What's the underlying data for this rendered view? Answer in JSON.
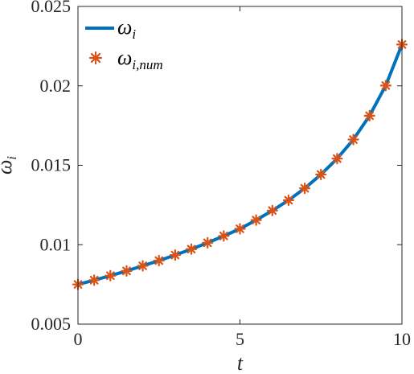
{
  "chart_data": {
    "type": "line",
    "xlabel": "t",
    "ylabel_main": "ω",
    "ylabel_sub": "i",
    "xlim": [
      0,
      10
    ],
    "ylim": [
      0.005,
      0.025
    ],
    "xticks": [
      0,
      5,
      10
    ],
    "xtick_labels": [
      "0",
      "5",
      "10"
    ],
    "yticks": [
      0.005,
      0.01,
      0.015,
      0.02,
      0.025
    ],
    "ytick_labels": [
      "0.005",
      "0.01",
      "0.015",
      "0.02",
      "0.025"
    ],
    "grid": false,
    "legend_position": "top-left",
    "series": [
      {
        "name_main": "ω",
        "name_sub": "i",
        "style": "line",
        "color": "#0072BD",
        "x": [
          0,
          0.5,
          1,
          1.5,
          2,
          2.5,
          3,
          3.5,
          4,
          4.5,
          5,
          5.5,
          6,
          6.5,
          7,
          7.5,
          8,
          8.5,
          9,
          9.5,
          10
        ],
        "y": [
          0.0075,
          0.00777,
          0.00805,
          0.00835,
          0.00867,
          0.009,
          0.00935,
          0.00972,
          0.01012,
          0.01055,
          0.011,
          0.01155,
          0.01215,
          0.0128,
          0.01355,
          0.01442,
          0.01542,
          0.01662,
          0.01812,
          0.02002,
          0.0226
        ]
      },
      {
        "name_main": "ω",
        "name_sub": "i,num",
        "style": "marker-asterisk",
        "color": "#D95319",
        "x": [
          0,
          0.5,
          1,
          1.5,
          2,
          2.5,
          3,
          3.5,
          4,
          4.5,
          5,
          5.5,
          6,
          6.5,
          7,
          7.5,
          8,
          8.5,
          9,
          9.5,
          10
        ],
        "y": [
          0.0075,
          0.00777,
          0.00805,
          0.00835,
          0.00867,
          0.009,
          0.00935,
          0.00972,
          0.01012,
          0.01055,
          0.011,
          0.01155,
          0.01215,
          0.0128,
          0.01355,
          0.01442,
          0.01542,
          0.01662,
          0.01812,
          0.02002,
          0.0226
        ]
      }
    ]
  }
}
